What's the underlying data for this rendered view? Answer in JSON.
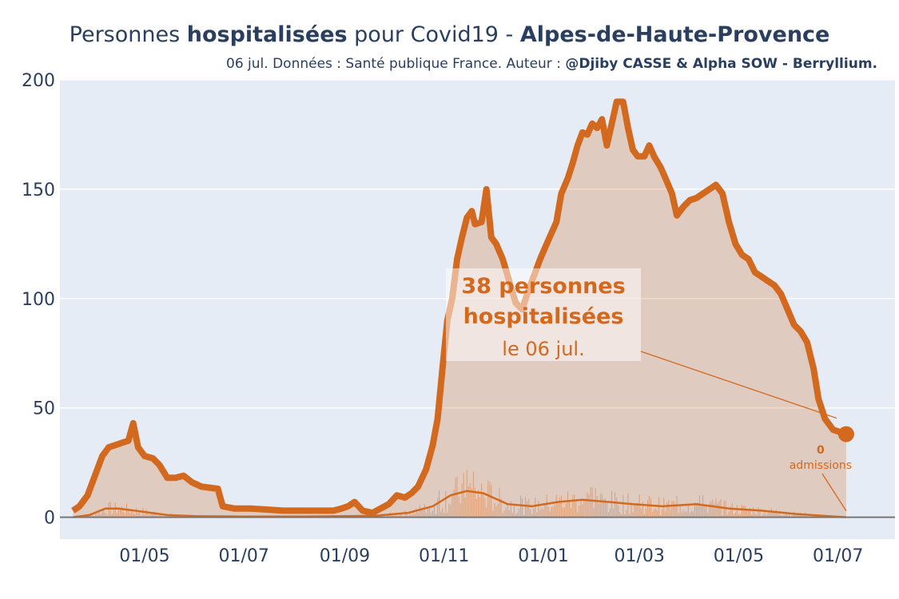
{
  "header": {
    "title_pre": "Personnes ",
    "title_bold1": "hospitalisées",
    "title_mid": " pour Covid19 - ",
    "title_bold2": "Alpes-de-Haute-Provence",
    "subtitle_pre": "06 jul. Données : Santé publique France. Auteur : ",
    "subtitle_bold": "@Djiby CASSE & Alpha SOW - Berryllium."
  },
  "colors": {
    "plot_bg": "#e5ecf6",
    "line": "#d2691e",
    "fill": "rgba(210,105,30,0.25)",
    "bars": "#d2691e",
    "text": "#2a3f5f"
  },
  "chart_data": {
    "type": "area",
    "title": "",
    "xlabel": "",
    "ylabel": "",
    "xlim": [
      "2020-03-10",
      "2021-08-05"
    ],
    "ylim": [
      -10,
      200
    ],
    "grid": true,
    "x_ticks": [
      {
        "date": "2020-05-01",
        "label": "01/05"
      },
      {
        "date": "2020-07-01",
        "label": "01/07"
      },
      {
        "date": "2020-09-01",
        "label": "01/09"
      },
      {
        "date": "2020-11-01",
        "label": "01/11"
      },
      {
        "date": "2021-01-01",
        "label": "01/01"
      },
      {
        "date": "2021-03-01",
        "label": "01/03"
      },
      {
        "date": "2021-05-01",
        "label": "01/05"
      },
      {
        "date": "2021-07-01",
        "label": "01/07"
      }
    ],
    "y_ticks": [
      0,
      50,
      100,
      150,
      200
    ],
    "series": [
      {
        "role": "hospitalisations",
        "points": [
          [
            "2020-03-18",
            3
          ],
          [
            "2020-03-22",
            5
          ],
          [
            "2020-03-27",
            10
          ],
          [
            "2020-04-01",
            20
          ],
          [
            "2020-04-05",
            28
          ],
          [
            "2020-04-09",
            32
          ],
          [
            "2020-04-13",
            33
          ],
          [
            "2020-04-17",
            34
          ],
          [
            "2020-04-21",
            35
          ],
          [
            "2020-04-24",
            43
          ],
          [
            "2020-04-27",
            32
          ],
          [
            "2020-05-01",
            28
          ],
          [
            "2020-05-06",
            27
          ],
          [
            "2020-05-10",
            24
          ],
          [
            "2020-05-15",
            18
          ],
          [
            "2020-05-20",
            18
          ],
          [
            "2020-05-25",
            19
          ],
          [
            "2020-05-30",
            16
          ],
          [
            "2020-06-05",
            14
          ],
          [
            "2020-06-15",
            13
          ],
          [
            "2020-06-18",
            5
          ],
          [
            "2020-06-25",
            4
          ],
          [
            "2020-07-05",
            4
          ],
          [
            "2020-07-15",
            3.5
          ],
          [
            "2020-07-25",
            3
          ],
          [
            "2020-08-05",
            3
          ],
          [
            "2020-08-15",
            3
          ],
          [
            "2020-08-25",
            3
          ],
          [
            "2020-08-30",
            4
          ],
          [
            "2020-09-03",
            5
          ],
          [
            "2020-09-07",
            7
          ],
          [
            "2020-09-12",
            3
          ],
          [
            "2020-09-18",
            2
          ],
          [
            "2020-09-23",
            4
          ],
          [
            "2020-09-28",
            6
          ],
          [
            "2020-10-03",
            10
          ],
          [
            "2020-10-08",
            9
          ],
          [
            "2020-10-12",
            11
          ],
          [
            "2020-10-16",
            14
          ],
          [
            "2020-10-21",
            22
          ],
          [
            "2020-10-25",
            33
          ],
          [
            "2020-10-28",
            45
          ],
          [
            "2020-10-31",
            68
          ],
          [
            "2020-11-03",
            90
          ],
          [
            "2020-11-06",
            100
          ],
          [
            "2020-11-09",
            118
          ],
          [
            "2020-11-12",
            128
          ],
          [
            "2020-11-15",
            137
          ],
          [
            "2020-11-18",
            140
          ],
          [
            "2020-11-20",
            134
          ],
          [
            "2020-11-24",
            135
          ],
          [
            "2020-11-27",
            150
          ],
          [
            "2020-11-30",
            128
          ],
          [
            "2020-12-03",
            125
          ],
          [
            "2020-12-07",
            118
          ],
          [
            "2020-12-11",
            108
          ],
          [
            "2020-12-15",
            98
          ],
          [
            "2020-12-19",
            95
          ],
          [
            "2020-12-22",
            102
          ],
          [
            "2020-12-26",
            110
          ],
          [
            "2020-12-30",
            118
          ],
          [
            "2021-01-03",
            125
          ],
          [
            "2021-01-06",
            130
          ],
          [
            "2021-01-09",
            135
          ],
          [
            "2021-01-12",
            148
          ],
          [
            "2021-01-16",
            155
          ],
          [
            "2021-01-19",
            162
          ],
          [
            "2021-01-22",
            170
          ],
          [
            "2021-01-25",
            176
          ],
          [
            "2021-01-28",
            175
          ],
          [
            "2021-01-31",
            180
          ],
          [
            "2021-02-03",
            178
          ],
          [
            "2021-02-06",
            182
          ],
          [
            "2021-02-09",
            170
          ],
          [
            "2021-02-12",
            180
          ],
          [
            "2021-02-15",
            190
          ],
          [
            "2021-02-19",
            190
          ],
          [
            "2021-02-22",
            178
          ],
          [
            "2021-02-25",
            168
          ],
          [
            "2021-02-28",
            165
          ],
          [
            "2021-03-04",
            165
          ],
          [
            "2021-03-07",
            170
          ],
          [
            "2021-03-10",
            165
          ],
          [
            "2021-03-14",
            160
          ],
          [
            "2021-03-17",
            155
          ],
          [
            "2021-03-21",
            148
          ],
          [
            "2021-03-24",
            138
          ],
          [
            "2021-03-28",
            142
          ],
          [
            "2021-04-01",
            145
          ],
          [
            "2021-04-05",
            146
          ],
          [
            "2021-04-09",
            148
          ],
          [
            "2021-04-13",
            150
          ],
          [
            "2021-04-17",
            152
          ],
          [
            "2021-04-21",
            148
          ],
          [
            "2021-04-25",
            135
          ],
          [
            "2021-04-29",
            125
          ],
          [
            "2021-05-03",
            120
          ],
          [
            "2021-05-07",
            118
          ],
          [
            "2021-05-11",
            112
          ],
          [
            "2021-05-15",
            110
          ],
          [
            "2021-05-19",
            108
          ],
          [
            "2021-05-23",
            106
          ],
          [
            "2021-05-27",
            102
          ],
          [
            "2021-05-31",
            95
          ],
          [
            "2021-06-04",
            88
          ],
          [
            "2021-06-08",
            85
          ],
          [
            "2021-06-12",
            80
          ],
          [
            "2021-06-16",
            68
          ],
          [
            "2021-06-19",
            54
          ],
          [
            "2021-06-23",
            45
          ],
          [
            "2021-06-28",
            40
          ],
          [
            "2021-07-02",
            39
          ],
          [
            "2021-07-06",
            38
          ]
        ]
      },
      {
        "role": "admissions_lissees",
        "points": [
          [
            "2020-03-18",
            0
          ],
          [
            "2020-03-28",
            1
          ],
          [
            "2020-04-07",
            4
          ],
          [
            "2020-04-15",
            4
          ],
          [
            "2020-04-25",
            3
          ],
          [
            "2020-05-05",
            2
          ],
          [
            "2020-05-15",
            1
          ],
          [
            "2020-06-01",
            0.5
          ],
          [
            "2020-07-01",
            0.3
          ],
          [
            "2020-08-01",
            0.3
          ],
          [
            "2020-09-01",
            0.5
          ],
          [
            "2020-09-20",
            0.7
          ],
          [
            "2020-10-10",
            2
          ],
          [
            "2020-10-25",
            5
          ],
          [
            "2020-11-05",
            10
          ],
          [
            "2020-11-15",
            12
          ],
          [
            "2020-11-25",
            11
          ],
          [
            "2020-12-10",
            6
          ],
          [
            "2020-12-25",
            5
          ],
          [
            "2021-01-10",
            7
          ],
          [
            "2021-01-25",
            8
          ],
          [
            "2021-02-10",
            7
          ],
          [
            "2021-02-25",
            6
          ],
          [
            "2021-03-15",
            5
          ],
          [
            "2021-04-05",
            6
          ],
          [
            "2021-04-25",
            4
          ],
          [
            "2021-05-15",
            3
          ],
          [
            "2021-06-05",
            1.5
          ],
          [
            "2021-06-25",
            0.5
          ],
          [
            "2021-07-06",
            0
          ]
        ]
      }
    ],
    "daily_admissions": {
      "start": "2020-03-18",
      "end": "2021-07-06",
      "typical_peak_value": 23
    },
    "annotations": [
      {
        "id": "hosp",
        "date": "2021-07-06",
        "value": 38,
        "line1": "38 personnes",
        "line2": "hospitalisées",
        "line3": "le 06 jul."
      },
      {
        "id": "adm",
        "date": "2021-07-06",
        "value": 0,
        "line1": "0",
        "line2": "admissions"
      }
    ]
  }
}
